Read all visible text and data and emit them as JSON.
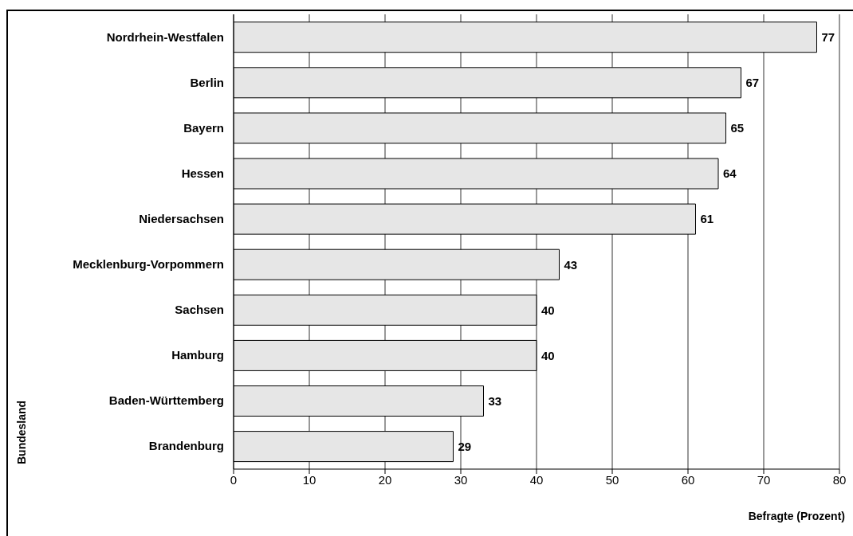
{
  "chart_data": {
    "type": "bar",
    "orientation": "horizontal",
    "categories": [
      "Nordrhein-Westfalen",
      "Berlin",
      "Bayern",
      "Hessen",
      "Niedersachsen",
      "Mecklenburg-Vorpommern",
      "Sachsen",
      "Hamburg",
      "Baden-Württemberg",
      "Brandenburg"
    ],
    "values": [
      77,
      67,
      65,
      64,
      61,
      43,
      40,
      40,
      33,
      29
    ],
    "color": "#e6e6e6",
    "xlim": [
      0,
      80
    ],
    "xticks": [
      0,
      10,
      20,
      30,
      40,
      50,
      60,
      70,
      80
    ],
    "xlabel": "Befragte (Prozent)",
    "ylabel": "Bundesland",
    "grid": "x",
    "data_labels": true
  }
}
